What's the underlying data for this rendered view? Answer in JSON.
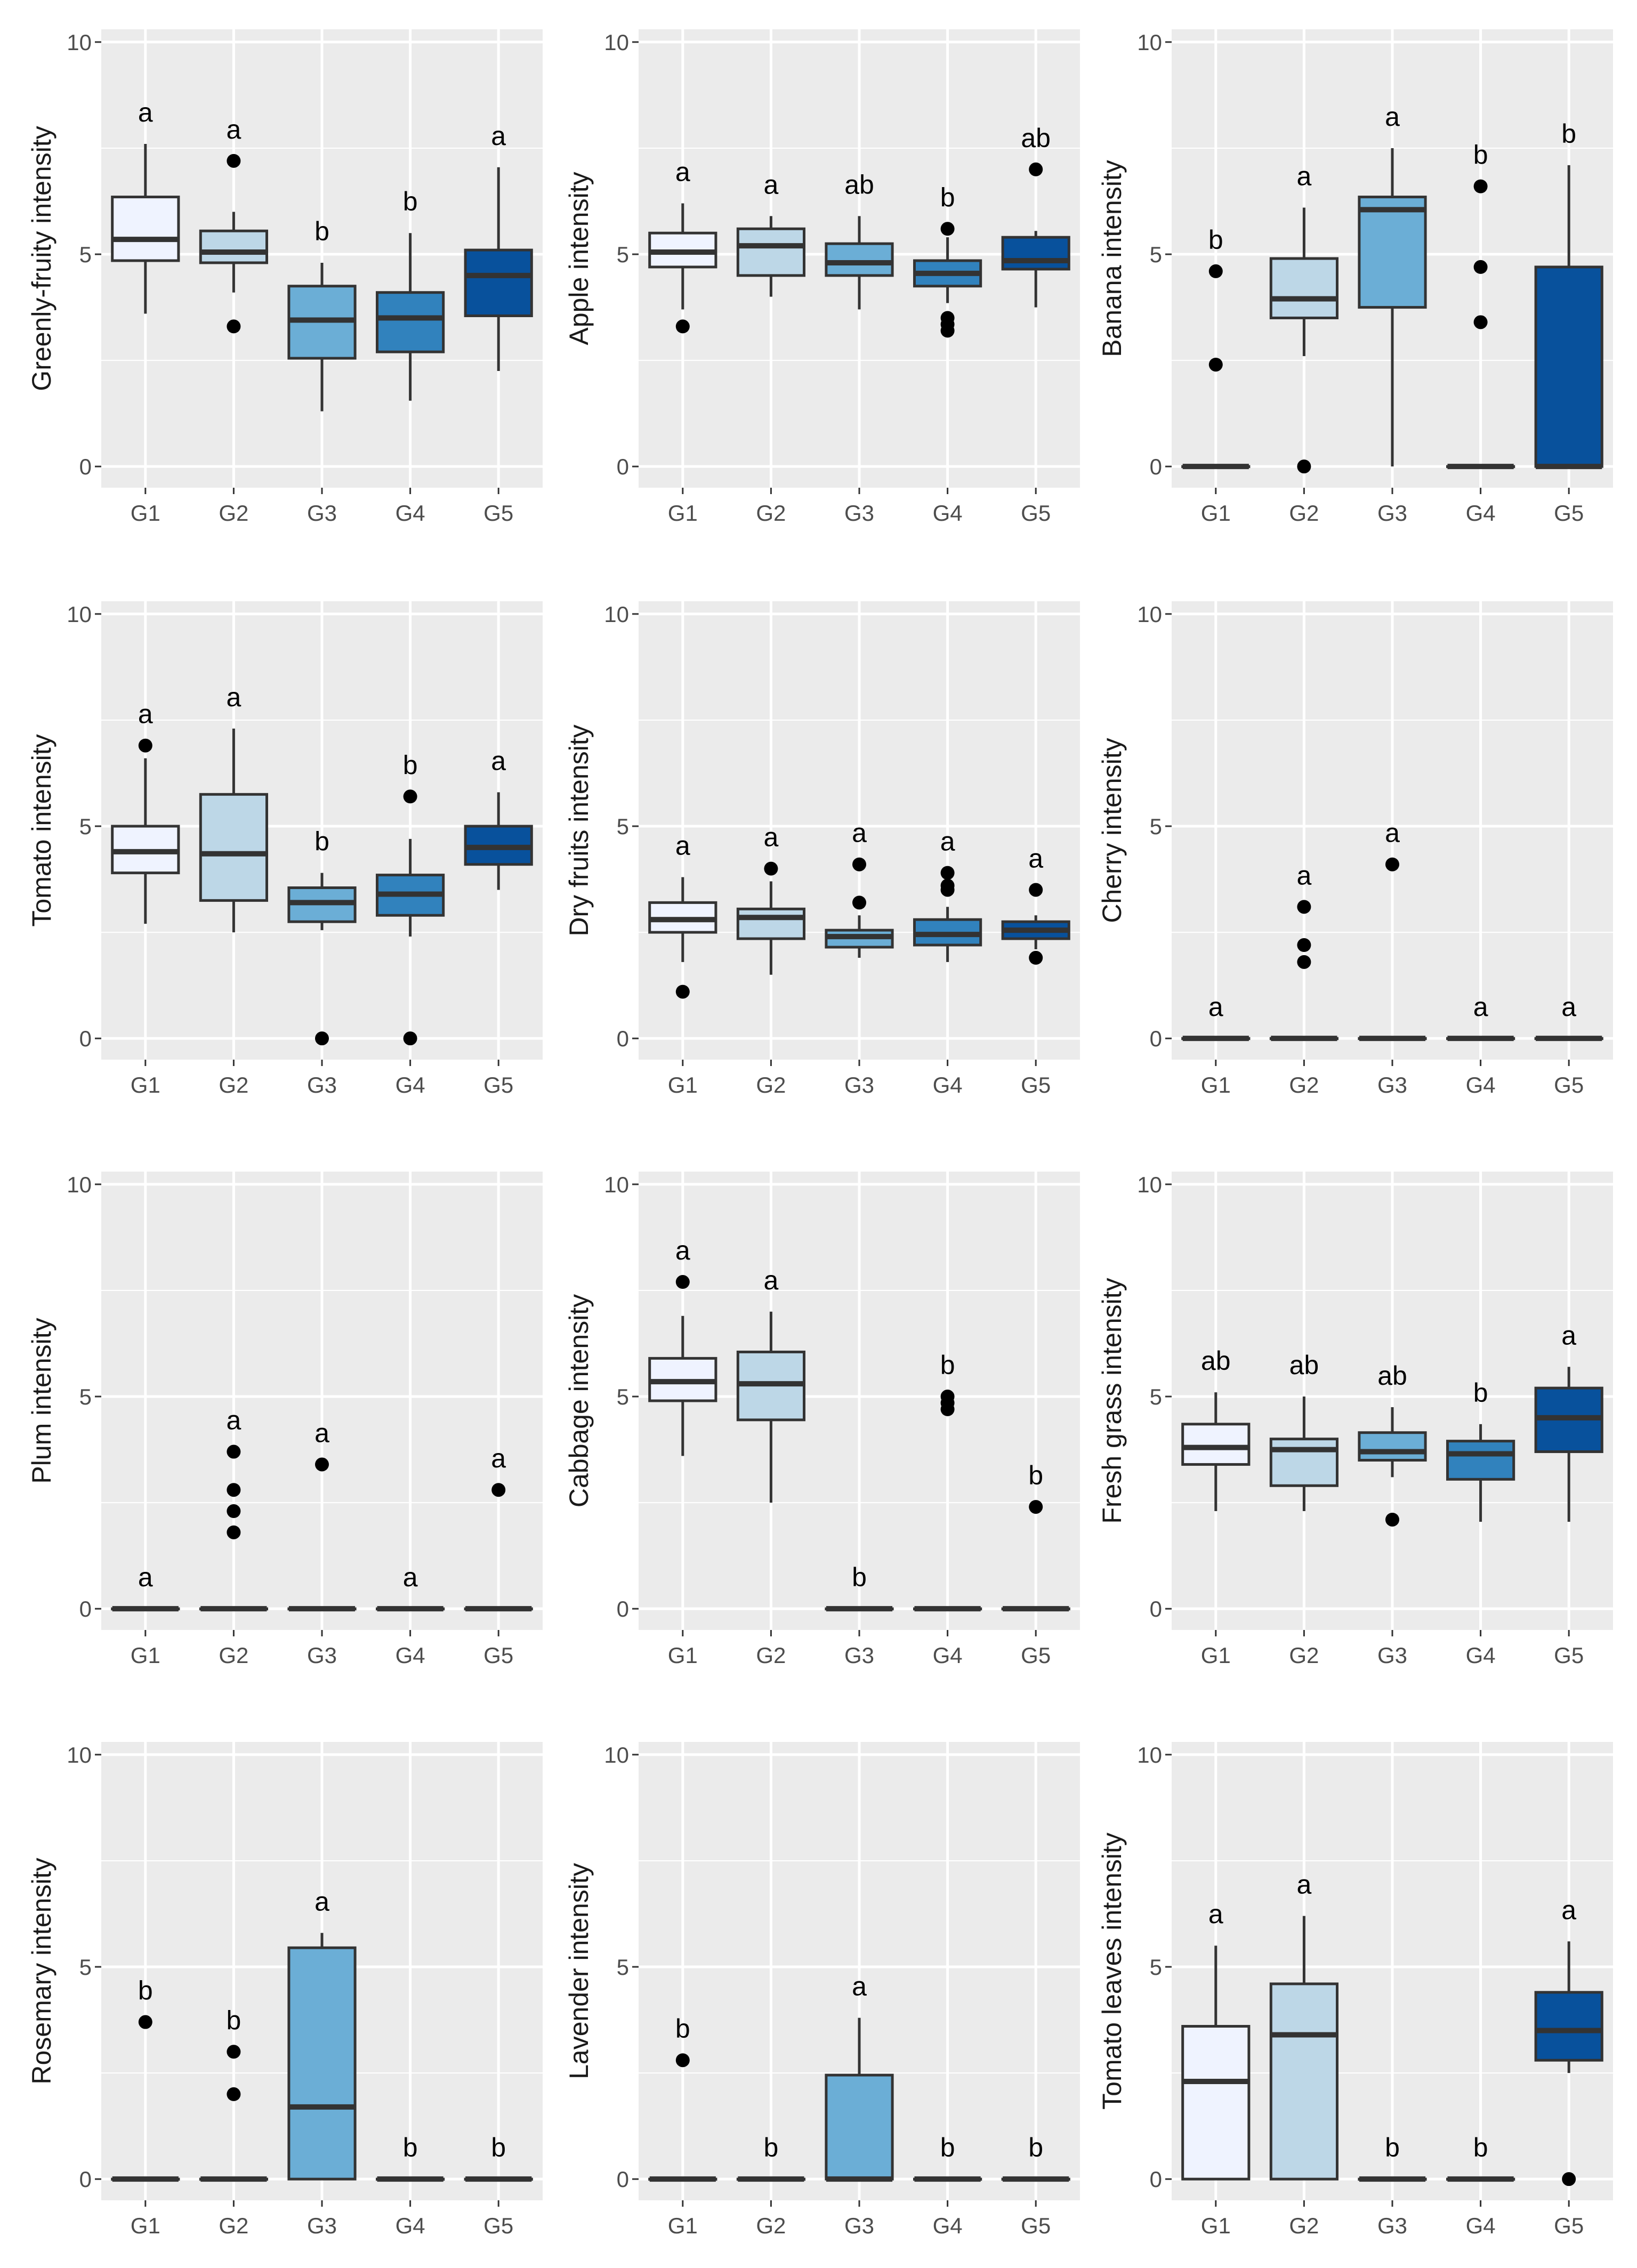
{
  "figure": {
    "group_colors": [
      "#eff3ff",
      "#bdd7e7",
      "#6baed6",
      "#3182bd",
      "#08519c"
    ],
    "panel_background": "#ebebeb",
    "grid_color": "#ffffff"
  },
  "chart_data": [
    {
      "type": "box",
      "ylabel": "Greenly-fruity intensity",
      "categories": [
        "G1",
        "G2",
        "G3",
        "G4",
        "G5"
      ],
      "ylim": [
        -0.5,
        10.3
      ],
      "yticks": [
        0,
        5,
        10
      ],
      "boxes": [
        {
          "q1": 4.85,
          "median": 5.35,
          "q3": 6.35,
          "whisker_low": 3.6,
          "whisker_high": 7.6,
          "outliers": [],
          "letter": "a"
        },
        {
          "q1": 4.8,
          "median": 5.05,
          "q3": 5.55,
          "whisker_low": 4.1,
          "whisker_high": 6.0,
          "outliers": [
            7.2,
            3.3
          ],
          "letter": "a"
        },
        {
          "q1": 2.55,
          "median": 3.45,
          "q3": 4.25,
          "whisker_low": 1.3,
          "whisker_high": 4.8,
          "outliers": [],
          "letter": "b"
        },
        {
          "q1": 2.7,
          "median": 3.5,
          "q3": 4.1,
          "whisker_low": 1.55,
          "whisker_high": 5.5,
          "outliers": [],
          "letter": "b"
        },
        {
          "q1": 3.55,
          "median": 4.5,
          "q3": 5.1,
          "whisker_low": 2.25,
          "whisker_high": 7.05,
          "outliers": [],
          "letter": "a"
        }
      ]
    },
    {
      "type": "box",
      "ylabel": "Apple intensity",
      "categories": [
        "G1",
        "G2",
        "G3",
        "G4",
        "G5"
      ],
      "ylim": [
        -0.5,
        10.3
      ],
      "yticks": [
        0,
        5,
        10
      ],
      "boxes": [
        {
          "q1": 4.7,
          "median": 5.05,
          "q3": 5.5,
          "whisker_low": 3.7,
          "whisker_high": 6.2,
          "outliers": [
            3.3
          ],
          "letter": "a"
        },
        {
          "q1": 4.5,
          "median": 5.2,
          "q3": 5.6,
          "whisker_low": 4.0,
          "whisker_high": 5.9,
          "outliers": [],
          "letter": "a"
        },
        {
          "q1": 4.5,
          "median": 4.8,
          "q3": 5.25,
          "whisker_low": 3.7,
          "whisker_high": 5.9,
          "outliers": [],
          "letter": "ab"
        },
        {
          "q1": 4.25,
          "median": 4.55,
          "q3": 4.85,
          "whisker_low": 3.85,
          "whisker_high": 5.4,
          "outliers": [
            5.6,
            3.5,
            3.35,
            3.2
          ],
          "letter": "b"
        },
        {
          "q1": 4.65,
          "median": 4.85,
          "q3": 5.4,
          "whisker_low": 3.75,
          "whisker_high": 5.55,
          "outliers": [
            7.0
          ],
          "letter": "ab"
        }
      ]
    },
    {
      "type": "box",
      "ylabel": "Banana intensity",
      "categories": [
        "G1",
        "G2",
        "G3",
        "G4",
        "G5"
      ],
      "ylim": [
        -0.5,
        10.3
      ],
      "yticks": [
        0,
        5,
        10
      ],
      "boxes": [
        {
          "q1": 0,
          "median": 0,
          "q3": 0,
          "whisker_low": 0,
          "whisker_high": 0,
          "outliers": [
            4.6,
            2.4
          ],
          "letter": "b"
        },
        {
          "q1": 3.5,
          "median": 3.95,
          "q3": 4.9,
          "whisker_low": 2.6,
          "whisker_high": 6.1,
          "outliers": [
            0
          ],
          "letter": "a"
        },
        {
          "q1": 3.75,
          "median": 6.05,
          "q3": 6.35,
          "whisker_low": 0,
          "whisker_high": 7.5,
          "outliers": [],
          "letter": "a"
        },
        {
          "q1": 0,
          "median": 0,
          "q3": 0,
          "whisker_low": 0,
          "whisker_high": 0,
          "outliers": [
            6.6,
            4.7,
            3.4
          ],
          "letter": "b"
        },
        {
          "q1": 0,
          "median": 0,
          "q3": 4.7,
          "whisker_low": 0,
          "whisker_high": 7.1,
          "outliers": [],
          "letter": "b"
        }
      ]
    },
    {
      "type": "box",
      "ylabel": "Tomato intensity",
      "categories": [
        "G1",
        "G2",
        "G3",
        "G4",
        "G5"
      ],
      "ylim": [
        -0.5,
        10.3
      ],
      "yticks": [
        0,
        5,
        10
      ],
      "boxes": [
        {
          "q1": 3.9,
          "median": 4.4,
          "q3": 5.0,
          "whisker_low": 2.7,
          "whisker_high": 6.6,
          "outliers": [
            6.9
          ],
          "letter": "a"
        },
        {
          "q1": 3.25,
          "median": 4.35,
          "q3": 5.75,
          "whisker_low": 2.5,
          "whisker_high": 7.3,
          "outliers": [],
          "letter": "a"
        },
        {
          "q1": 2.75,
          "median": 3.2,
          "q3": 3.55,
          "whisker_low": 2.55,
          "whisker_high": 3.9,
          "outliers": [
            0
          ],
          "letter": "b"
        },
        {
          "q1": 2.9,
          "median": 3.4,
          "q3": 3.85,
          "whisker_low": 2.4,
          "whisker_high": 4.7,
          "outliers": [
            5.7,
            0
          ],
          "letter": "b"
        },
        {
          "q1": 4.1,
          "median": 4.5,
          "q3": 5.0,
          "whisker_low": 3.5,
          "whisker_high": 5.8,
          "outliers": [],
          "letter": "a"
        }
      ]
    },
    {
      "type": "box",
      "ylabel": "Dry fruits intensity",
      "categories": [
        "G1",
        "G2",
        "G3",
        "G4",
        "G5"
      ],
      "ylim": [
        -0.5,
        10.3
      ],
      "yticks": [
        0,
        5,
        10
      ],
      "boxes": [
        {
          "q1": 2.5,
          "median": 2.8,
          "q3": 3.2,
          "whisker_low": 1.8,
          "whisker_high": 3.8,
          "outliers": [
            1.1
          ],
          "letter": "a"
        },
        {
          "q1": 2.35,
          "median": 2.85,
          "q3": 3.05,
          "whisker_low": 1.5,
          "whisker_high": 3.7,
          "outliers": [
            4.0
          ],
          "letter": "a"
        },
        {
          "q1": 2.15,
          "median": 2.4,
          "q3": 2.55,
          "whisker_low": 1.9,
          "whisker_high": 2.9,
          "outliers": [
            4.1,
            3.2
          ],
          "letter": "a"
        },
        {
          "q1": 2.2,
          "median": 2.45,
          "q3": 2.8,
          "whisker_low": 1.8,
          "whisker_high": 3.1,
          "outliers": [
            3.9,
            3.6,
            3.5
          ],
          "letter": "a"
        },
        {
          "q1": 2.35,
          "median": 2.55,
          "q3": 2.75,
          "whisker_low": 2.1,
          "whisker_high": 2.9,
          "outliers": [
            3.5,
            1.9
          ],
          "letter": "a"
        }
      ]
    },
    {
      "type": "box",
      "ylabel": "Cherry intensity",
      "categories": [
        "G1",
        "G2",
        "G3",
        "G4",
        "G5"
      ],
      "ylim": [
        -0.5,
        10.3
      ],
      "yticks": [
        0,
        5,
        10
      ],
      "boxes": [
        {
          "q1": 0,
          "median": 0,
          "q3": 0,
          "whisker_low": 0,
          "whisker_high": 0,
          "outliers": [],
          "letter": "a"
        },
        {
          "q1": 0,
          "median": 0,
          "q3": 0,
          "whisker_low": 0,
          "whisker_high": 0,
          "outliers": [
            3.1,
            2.2,
            1.8
          ],
          "letter": "a"
        },
        {
          "q1": 0,
          "median": 0,
          "q3": 0,
          "whisker_low": 0,
          "whisker_high": 0,
          "outliers": [
            4.1
          ],
          "letter": "a"
        },
        {
          "q1": 0,
          "median": 0,
          "q3": 0,
          "whisker_low": 0,
          "whisker_high": 0,
          "outliers": [],
          "letter": "a"
        },
        {
          "q1": 0,
          "median": 0,
          "q3": 0,
          "whisker_low": 0,
          "whisker_high": 0,
          "outliers": [],
          "letter": "a"
        }
      ]
    },
    {
      "type": "box",
      "ylabel": "Plum intensity",
      "categories": [
        "G1",
        "G2",
        "G3",
        "G4",
        "G5"
      ],
      "ylim": [
        -0.5,
        10.3
      ],
      "yticks": [
        0,
        5,
        10
      ],
      "boxes": [
        {
          "q1": 0,
          "median": 0,
          "q3": 0,
          "whisker_low": 0,
          "whisker_high": 0,
          "outliers": [],
          "letter": "a"
        },
        {
          "q1": 0,
          "median": 0,
          "q3": 0,
          "whisker_low": 0,
          "whisker_high": 0,
          "outliers": [
            3.7,
            2.8,
            2.3,
            1.8
          ],
          "letter": "a"
        },
        {
          "q1": 0,
          "median": 0,
          "q3": 0,
          "whisker_low": 0,
          "whisker_high": 0,
          "outliers": [
            3.4
          ],
          "letter": "a"
        },
        {
          "q1": 0,
          "median": 0,
          "q3": 0,
          "whisker_low": 0,
          "whisker_high": 0,
          "outliers": [],
          "letter": "a"
        },
        {
          "q1": 0,
          "median": 0,
          "q3": 0,
          "whisker_low": 0,
          "whisker_high": 0,
          "outliers": [
            2.8
          ],
          "letter": "a"
        }
      ]
    },
    {
      "type": "box",
      "ylabel": "Cabbage intensity",
      "categories": [
        "G1",
        "G2",
        "G3",
        "G4",
        "G5"
      ],
      "ylim": [
        -0.5,
        10.3
      ],
      "yticks": [
        0,
        5,
        10
      ],
      "boxes": [
        {
          "q1": 4.9,
          "median": 5.35,
          "q3": 5.9,
          "whisker_low": 3.6,
          "whisker_high": 6.9,
          "outliers": [
            7.7
          ],
          "letter": "a"
        },
        {
          "q1": 4.45,
          "median": 5.3,
          "q3": 6.05,
          "whisker_low": 2.5,
          "whisker_high": 7.0,
          "outliers": [],
          "letter": "a"
        },
        {
          "q1": 0,
          "median": 0,
          "q3": 0,
          "whisker_low": 0,
          "whisker_high": 0,
          "outliers": [],
          "letter": "b"
        },
        {
          "q1": 0,
          "median": 0,
          "q3": 0,
          "whisker_low": 0,
          "whisker_high": 0,
          "outliers": [
            5.0,
            4.85,
            4.7
          ],
          "letter": "b"
        },
        {
          "q1": 0,
          "median": 0,
          "q3": 0,
          "whisker_low": 0,
          "whisker_high": 0,
          "outliers": [
            2.4
          ],
          "letter": "b"
        }
      ]
    },
    {
      "type": "box",
      "ylabel": "Fresh grass intensity",
      "categories": [
        "G1",
        "G2",
        "G3",
        "G4",
        "G5"
      ],
      "ylim": [
        -0.5,
        10.3
      ],
      "yticks": [
        0,
        5,
        10
      ],
      "boxes": [
        {
          "q1": 3.4,
          "median": 3.8,
          "q3": 4.35,
          "whisker_low": 2.3,
          "whisker_high": 5.1,
          "outliers": [],
          "letter": "ab"
        },
        {
          "q1": 2.9,
          "median": 3.75,
          "q3": 4.0,
          "whisker_low": 2.3,
          "whisker_high": 5.0,
          "outliers": [],
          "letter": "ab"
        },
        {
          "q1": 3.5,
          "median": 3.7,
          "q3": 4.15,
          "whisker_low": 3.1,
          "whisker_high": 4.75,
          "outliers": [
            2.1
          ],
          "letter": "ab"
        },
        {
          "q1": 3.05,
          "median": 3.65,
          "q3": 3.95,
          "whisker_low": 2.05,
          "whisker_high": 4.35,
          "outliers": [],
          "letter": "b"
        },
        {
          "q1": 3.7,
          "median": 4.5,
          "q3": 5.2,
          "whisker_low": 2.05,
          "whisker_high": 5.7,
          "outliers": [],
          "letter": "a"
        }
      ]
    },
    {
      "type": "box",
      "ylabel": "Rosemary intensity",
      "categories": [
        "G1",
        "G2",
        "G3",
        "G4",
        "G5"
      ],
      "ylim": [
        -0.5,
        10.3
      ],
      "yticks": [
        0,
        5,
        10
      ],
      "boxes": [
        {
          "q1": 0,
          "median": 0,
          "q3": 0,
          "whisker_low": 0,
          "whisker_high": 0,
          "outliers": [
            3.7
          ],
          "letter": "b"
        },
        {
          "q1": 0,
          "median": 0,
          "q3": 0,
          "whisker_low": 0,
          "whisker_high": 0,
          "outliers": [
            3.0,
            2.0
          ],
          "letter": "b"
        },
        {
          "q1": 0,
          "median": 1.7,
          "q3": 5.45,
          "whisker_low": 0,
          "whisker_high": 5.8,
          "outliers": [],
          "letter": "a"
        },
        {
          "q1": 0,
          "median": 0,
          "q3": 0,
          "whisker_low": 0,
          "whisker_high": 0,
          "outliers": [],
          "letter": "b"
        },
        {
          "q1": 0,
          "median": 0,
          "q3": 0,
          "whisker_low": 0,
          "whisker_high": 0,
          "outliers": [],
          "letter": "b"
        }
      ]
    },
    {
      "type": "box",
      "ylabel": "Lavender intensity",
      "categories": [
        "G1",
        "G2",
        "G3",
        "G4",
        "G5"
      ],
      "ylim": [
        -0.5,
        10.3
      ],
      "yticks": [
        0,
        5,
        10
      ],
      "boxes": [
        {
          "q1": 0,
          "median": 0,
          "q3": 0,
          "whisker_low": 0,
          "whisker_high": 0,
          "outliers": [
            2.8
          ],
          "letter": "b"
        },
        {
          "q1": 0,
          "median": 0,
          "q3": 0,
          "whisker_low": 0,
          "whisker_high": 0,
          "outliers": [],
          "letter": "b"
        },
        {
          "q1": 0,
          "median": 0,
          "q3": 2.45,
          "whisker_low": 0,
          "whisker_high": 3.8,
          "outliers": [],
          "letter": "a"
        },
        {
          "q1": 0,
          "median": 0,
          "q3": 0,
          "whisker_low": 0,
          "whisker_high": 0,
          "outliers": [],
          "letter": "b"
        },
        {
          "q1": 0,
          "median": 0,
          "q3": 0,
          "whisker_low": 0,
          "whisker_high": 0,
          "outliers": [],
          "letter": "b"
        }
      ]
    },
    {
      "type": "box",
      "ylabel": "Tomato leaves intensity",
      "categories": [
        "G1",
        "G2",
        "G3",
        "G4",
        "G5"
      ],
      "ylim": [
        -0.5,
        10.3
      ],
      "yticks": [
        0,
        5,
        10
      ],
      "boxes": [
        {
          "q1": 0,
          "median": 2.3,
          "q3": 3.6,
          "whisker_low": 0,
          "whisker_high": 5.5,
          "outliers": [],
          "letter": "a"
        },
        {
          "q1": 0,
          "median": 3.4,
          "q3": 4.6,
          "whisker_low": 0,
          "whisker_high": 6.2,
          "outliers": [],
          "letter": "a"
        },
        {
          "q1": 0,
          "median": 0,
          "q3": 0,
          "whisker_low": 0,
          "whisker_high": 0,
          "outliers": [],
          "letter": "b"
        },
        {
          "q1": 0,
          "median": 0,
          "q3": 0,
          "whisker_low": 0,
          "whisker_high": 0,
          "outliers": [],
          "letter": "b"
        },
        {
          "q1": 2.8,
          "median": 3.5,
          "q3": 4.4,
          "whisker_low": 2.5,
          "whisker_high": 5.6,
          "outliers": [
            0
          ],
          "letter": "a"
        }
      ]
    }
  ]
}
